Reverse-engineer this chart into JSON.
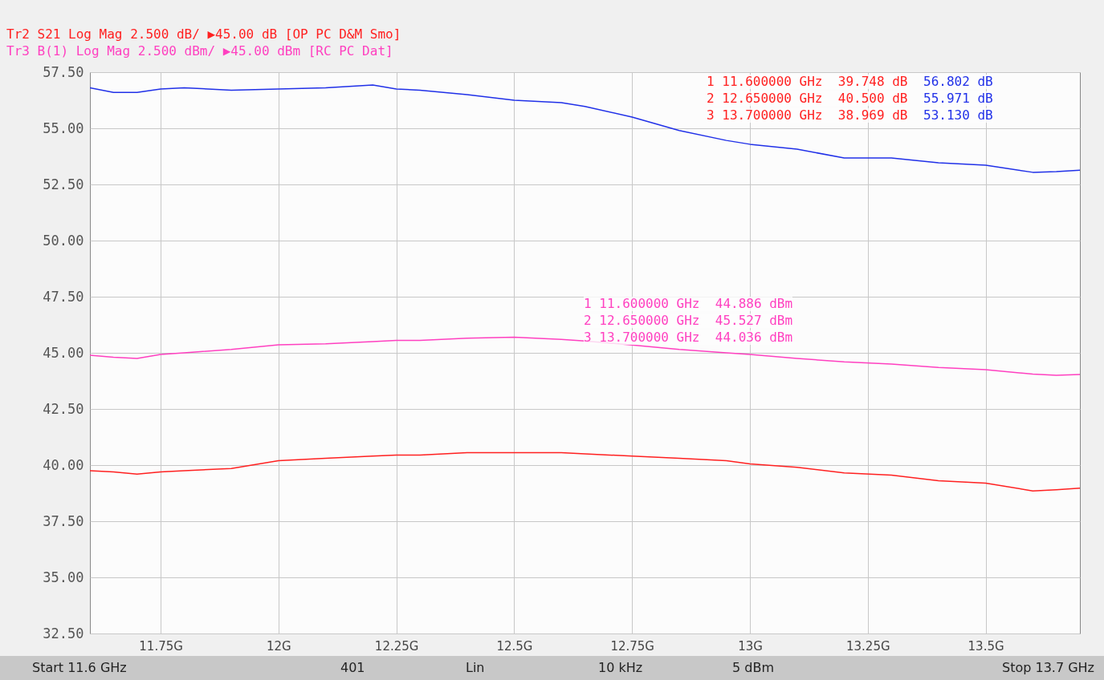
{
  "chart_data": {
    "type": "line",
    "title": "Tr2 S21 Log Mag 2.500 dB/ ▶45.00 dB [OP PC D&M Smo]",
    "subtitle": "Tr3 B(1) Log Mag 2.500 dBm/ ▶45.00 dBm [RC PC Dat]",
    "x": [
      11.6,
      11.65,
      11.7,
      11.75,
      11.8,
      11.9,
      12.0,
      12.1,
      12.2,
      12.25,
      12.3,
      12.4,
      12.5,
      12.6,
      12.65,
      12.75,
      12.85,
      12.95,
      13.0,
      13.1,
      13.2,
      13.3,
      13.4,
      13.5,
      13.6,
      13.65,
      13.7
    ],
    "series": [
      {
        "color": "#2030e8",
        "values": [
          56.8,
          56.6,
          56.6,
          56.75,
          56.8,
          56.7,
          56.75,
          56.8,
          56.93,
          56.75,
          56.7,
          56.5,
          56.25,
          56.14,
          55.97,
          55.5,
          54.9,
          54.46,
          54.29,
          54.07,
          53.68,
          53.68,
          53.46,
          53.36,
          53.04,
          53.07,
          53.13
        ]
      },
      {
        "color": "#ff40c0",
        "values": [
          44.89,
          44.8,
          44.75,
          44.93,
          45.0,
          45.15,
          45.36,
          45.4,
          45.5,
          45.55,
          45.55,
          45.65,
          45.7,
          45.6,
          45.53,
          45.35,
          45.15,
          45.0,
          44.93,
          44.75,
          44.6,
          44.5,
          44.35,
          44.25,
          44.05,
          44.0,
          44.04
        ]
      },
      {
        "color": "#ff2020",
        "values": [
          39.75,
          39.7,
          39.6,
          39.7,
          39.75,
          39.85,
          40.2,
          40.3,
          40.4,
          40.45,
          40.45,
          40.55,
          40.55,
          40.55,
          40.5,
          40.4,
          40.3,
          40.2,
          40.05,
          39.9,
          39.65,
          39.55,
          39.3,
          39.2,
          38.85,
          38.9,
          38.97
        ]
      }
    ],
    "xlim": [
      11.6,
      13.7
    ],
    "xticks": [
      {
        "value": 11.75,
        "label": "11.75G"
      },
      {
        "value": 12,
        "label": "12G"
      },
      {
        "value": 12.25,
        "label": "12.25G"
      },
      {
        "value": 12.5,
        "label": "12.5G"
      },
      {
        "value": 12.75,
        "label": "12.75G"
      },
      {
        "value": 13,
        "label": "13G"
      },
      {
        "value": 13.25,
        "label": "13.25G"
      },
      {
        "value": 13.5,
        "label": "13.5G"
      }
    ],
    "ylim": [
      32.5,
      57.5
    ],
    "yticks": [
      {
        "value": 32.5,
        "label": "32.50"
      },
      {
        "value": 35,
        "label": "35.00"
      },
      {
        "value": 37.5,
        "label": "37.50"
      },
      {
        "value": 40,
        "label": "40.00"
      },
      {
        "value": 42.5,
        "label": "42.50"
      },
      {
        "value": 45,
        "label": "45.00"
      },
      {
        "value": 47.5,
        "label": "47.50"
      },
      {
        "value": 50,
        "label": "50.00"
      },
      {
        "value": 52.5,
        "label": "52.50"
      },
      {
        "value": 55,
        "label": "55.00"
      },
      {
        "value": 57.5,
        "label": "57.50"
      }
    ],
    "grid": true,
    "annotations": [
      "1 11.600000 GHz  39.748 dB",
      "2 12.650000 GHz  40.500 dB",
      "3 13.700000 GHz  38.969 dB",
      "56.802 dB",
      "55.971 dB",
      "53.130 dB",
      "1 11.600000 GHz  44.886 dBm",
      "2 12.650000 GHz  45.527 dBm",
      "3 13.700000 GHz  44.036 dBm",
      "Start 11.6 GHz",
      "401",
      "Lin",
      "10 kHz",
      "5 dBm",
      "Stop 13.7 GHz"
    ]
  }
}
